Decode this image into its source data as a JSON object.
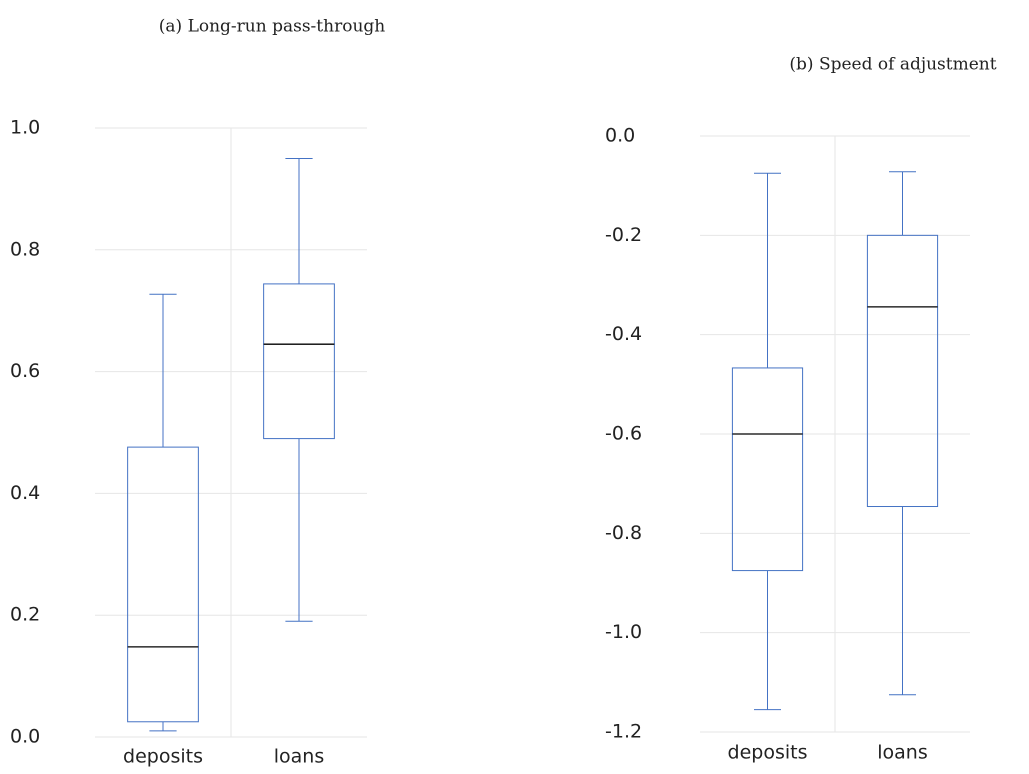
{
  "chart_data": [
    {
      "type": "box",
      "title": "(a) Long-run pass-through",
      "categories": [
        "deposits",
        "loans"
      ],
      "values": [
        {
          "min": 0.01,
          "q1": 0.025,
          "median": 0.148,
          "q3": 0.476,
          "max": 0.727
        },
        {
          "min": 0.19,
          "q1": 0.49,
          "median": 0.645,
          "q3": 0.744,
          "max": 0.95
        }
      ],
      "color": "#4472c4",
      "median_color": "#000000",
      "ylim": [
        0,
        1
      ],
      "yticks": [
        {
          "value": 0,
          "label": "0.0"
        },
        0.2,
        0.4,
        0.6,
        0.8,
        {
          "value": 1,
          "label": "1.0"
        }
      ],
      "grid": true
    },
    {
      "type": "box",
      "title": "(b) Speed of adjustment",
      "categories": [
        "deposits",
        "loans"
      ],
      "values": [
        {
          "min": -1.155,
          "q1": -0.875,
          "median": -0.6,
          "q3": -0.467,
          "max": -0.075
        },
        {
          "min": -1.125,
          "q1": -0.746,
          "median": -0.344,
          "q3": -0.2,
          "max": -0.072
        }
      ],
      "color": "#4472c4",
      "median_color": "#000000",
      "ylim": [
        -1.2,
        0
      ],
      "yticks": [
        -1.2,
        {
          "value": -1,
          "label": "-1.0"
        },
        -0.8,
        -0.6,
        -0.4,
        -0.2,
        {
          "value": 0,
          "label": "0.0"
        }
      ],
      "grid": true
    }
  ]
}
